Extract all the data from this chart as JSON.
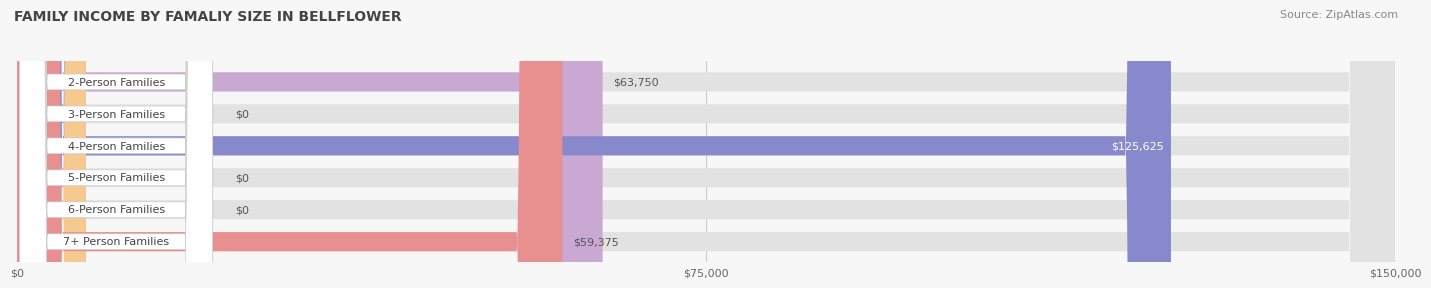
{
  "title": "FAMILY INCOME BY FAMALIY SIZE IN BELLFLOWER",
  "source": "Source: ZipAtlas.com",
  "categories": [
    "2-Person Families",
    "3-Person Families",
    "4-Person Families",
    "5-Person Families",
    "6-Person Families",
    "7+ Person Families"
  ],
  "values": [
    63750,
    0,
    125625,
    0,
    0,
    59375
  ],
  "bar_colors": [
    "#c9a8d4",
    "#6ec8c0",
    "#8888cc",
    "#f4a0b8",
    "#f5c990",
    "#e89090"
  ],
  "value_labels": [
    "$63,750",
    "$0",
    "$125,625",
    "$0",
    "$0",
    "$59,375"
  ],
  "xlim": [
    0,
    150000
  ],
  "xticks": [
    0,
    75000,
    150000
  ],
  "xtick_labels": [
    "$0",
    "$75,000",
    "$150,000"
  ],
  "background_color": "#f7f7f7",
  "title_fontsize": 10,
  "source_fontsize": 8,
  "bar_label_fontsize": 8,
  "value_fontsize": 8,
  "tick_fontsize": 8
}
